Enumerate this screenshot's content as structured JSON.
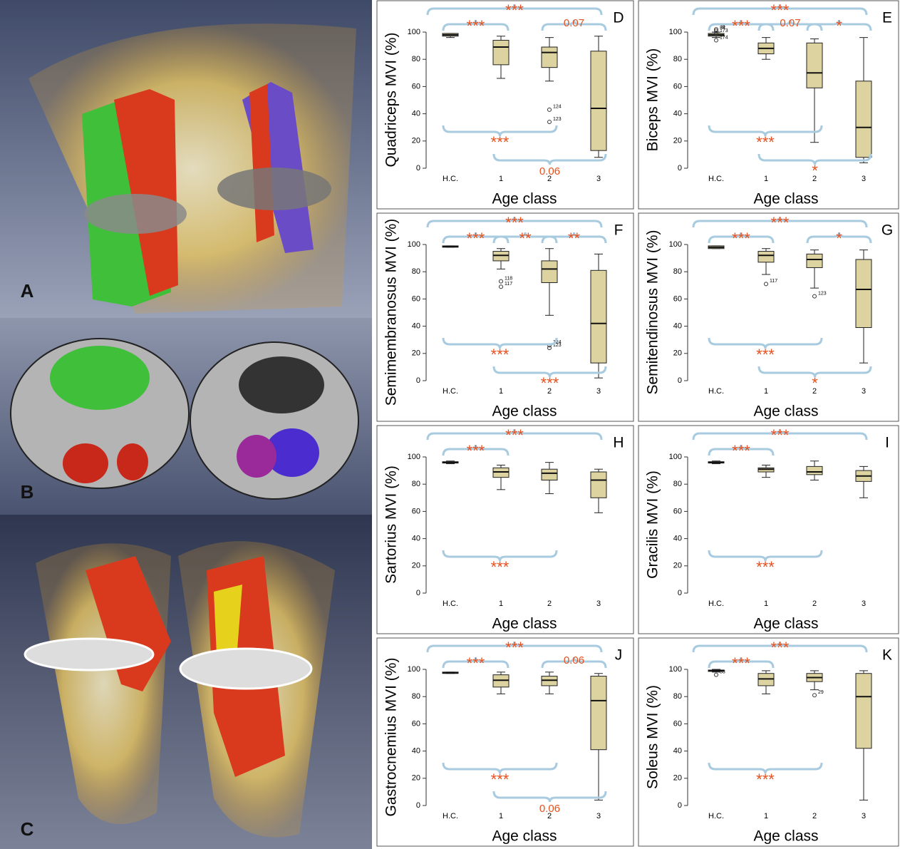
{
  "images": [
    {
      "label": "A"
    },
    {
      "label": "B"
    },
    {
      "label": "C"
    }
  ],
  "chart_data": [
    {
      "type": "box",
      "panel": "D",
      "ylabel": "Quadriceps MVI (%)",
      "xlabel": "Age class",
      "categories": [
        "H.C.",
        "1",
        "2",
        "3"
      ],
      "ylim": [
        0,
        100
      ],
      "yticks": [
        0,
        20,
        40,
        60,
        80,
        100
      ],
      "color": "#dcd3a0",
      "sig_color": "#e8501e",
      "boxes": [
        {
          "low": 96,
          "q1": 97,
          "median": 98,
          "q3": 99,
          "high": 99,
          "outliers": []
        },
        {
          "low": 66,
          "q1": 76,
          "median": 89,
          "q3": 94,
          "high": 97,
          "outliers": []
        },
        {
          "low": 64,
          "q1": 74,
          "median": 85,
          "q3": 89,
          "high": 96,
          "outliers": [
            {
              "value": 43,
              "label": "124"
            },
            {
              "value": 34,
              "label": "123"
            }
          ]
        },
        {
          "low": 8,
          "q1": 13,
          "median": 44,
          "q3": 86,
          "high": 97,
          "outliers": []
        }
      ],
      "comparisons": [
        {
          "between": [
            "H.C.",
            "3"
          ],
          "side": "top",
          "label": "***"
        },
        {
          "between": [
            "H.C.",
            "1"
          ],
          "side": "top",
          "label": "***"
        },
        {
          "between": [
            "2",
            "3"
          ],
          "side": "top",
          "label": "0.07"
        },
        {
          "between": [
            "H.C.",
            "2"
          ],
          "side": "bottom",
          "label": "***"
        },
        {
          "between": [
            "1",
            "3"
          ],
          "side": "bottom",
          "label": "0.06"
        }
      ]
    },
    {
      "type": "box",
      "panel": "E",
      "ylabel": "Biceps MVI (%)",
      "xlabel": "Age class",
      "categories": [
        "H.C.",
        "1",
        "2",
        "3"
      ],
      "ylim": [
        0,
        100
      ],
      "yticks": [
        0,
        20,
        40,
        60,
        80,
        100
      ],
      "color": "#dcd3a0",
      "sig_color": "#e8501e",
      "boxes": [
        {
          "low": 96,
          "q1": 97,
          "median": 98,
          "q3": 99,
          "high": 100,
          "outliers": [
            {
              "value": 101,
              "label": "34"
            },
            {
              "value": 102,
              "label": "36"
            },
            {
              "value": 99,
              "label": "173"
            },
            {
              "value": 94,
              "label": "174"
            }
          ]
        },
        {
          "low": 80,
          "q1": 84,
          "median": 88,
          "q3": 92,
          "high": 96,
          "outliers": []
        },
        {
          "low": 19,
          "q1": 59,
          "median": 70,
          "q3": 92,
          "high": 95,
          "outliers": []
        },
        {
          "low": 4,
          "q1": 8,
          "median": 30,
          "q3": 64,
          "high": 96,
          "outliers": []
        }
      ],
      "comparisons": [
        {
          "between": [
            "H.C.",
            "3"
          ],
          "side": "top",
          "label": "***"
        },
        {
          "between": [
            "H.C.",
            "1"
          ],
          "side": "top",
          "label": "***"
        },
        {
          "between": [
            "1",
            "2"
          ],
          "side": "top",
          "label": "0.07"
        },
        {
          "between": [
            "2",
            "3"
          ],
          "side": "top",
          "label": "*"
        },
        {
          "between": [
            "H.C.",
            "2"
          ],
          "side": "bottom",
          "label": "***"
        },
        {
          "between": [
            "1",
            "3"
          ],
          "side": "bottom",
          "label": "*"
        }
      ]
    },
    {
      "type": "box",
      "panel": "F",
      "ylabel": "Semimembranosus MVI (%)",
      "xlabel": "Age class",
      "categories": [
        "H.C.",
        "1",
        "2",
        "3"
      ],
      "ylim": [
        0,
        100
      ],
      "yticks": [
        0,
        20,
        40,
        60,
        80,
        100
      ],
      "color": "#dcd3a0",
      "sig_color": "#e8501e",
      "boxes": [
        {
          "low": 98,
          "q1": 98,
          "median": 98.5,
          "q3": 99,
          "high": 99,
          "outliers": []
        },
        {
          "low": 82,
          "q1": 88,
          "median": 92,
          "q3": 95,
          "high": 97,
          "outliers": [
            {
              "value": 73,
              "label": "118"
            },
            {
              "value": 69,
              "label": "117"
            }
          ]
        },
        {
          "low": 48,
          "q1": 72,
          "median": 82,
          "q3": 88,
          "high": 97,
          "outliers": [
            {
              "value": 26,
              "label": "124"
            },
            {
              "value": 24,
              "label": "123"
            }
          ]
        },
        {
          "low": 2,
          "q1": 13,
          "median": 42,
          "q3": 81,
          "high": 93,
          "outliers": []
        }
      ],
      "comparisons": [
        {
          "between": [
            "H.C.",
            "3"
          ],
          "side": "top",
          "label": "***"
        },
        {
          "between": [
            "H.C.",
            "1"
          ],
          "side": "top",
          "label": "***"
        },
        {
          "between": [
            "1",
            "2"
          ],
          "side": "top",
          "label": "**"
        },
        {
          "between": [
            "2",
            "3"
          ],
          "side": "top",
          "label": "**"
        },
        {
          "between": [
            "H.C.",
            "2"
          ],
          "side": "bottom",
          "label": "***"
        },
        {
          "between": [
            "1",
            "3"
          ],
          "side": "bottom",
          "label": "***"
        }
      ]
    },
    {
      "type": "box",
      "panel": "G",
      "ylabel": "Semitendinosus MVI (%)",
      "xlabel": "Age class",
      "categories": [
        "H.C.",
        "1",
        "2",
        "3"
      ],
      "ylim": [
        0,
        100
      ],
      "yticks": [
        0,
        20,
        40,
        60,
        80,
        100
      ],
      "color": "#dcd3a0",
      "sig_color": "#e8501e",
      "boxes": [
        {
          "low": 97,
          "q1": 97,
          "median": 98,
          "q3": 99,
          "high": 99,
          "outliers": []
        },
        {
          "low": 78,
          "q1": 87,
          "median": 92,
          "q3": 95,
          "high": 97,
          "outliers": [
            {
              "value": 71,
              "label": "117"
            }
          ]
        },
        {
          "low": 68,
          "q1": 83,
          "median": 89,
          "q3": 93,
          "high": 96,
          "outliers": [
            {
              "value": 62,
              "label": "123"
            }
          ]
        },
        {
          "low": 13,
          "q1": 39,
          "median": 67,
          "q3": 89,
          "high": 96,
          "outliers": []
        }
      ],
      "comparisons": [
        {
          "between": [
            "H.C.",
            "3"
          ],
          "side": "top",
          "label": "***"
        },
        {
          "between": [
            "H.C.",
            "1"
          ],
          "side": "top",
          "label": "***"
        },
        {
          "between": [
            "2",
            "3"
          ],
          "side": "top",
          "label": "*"
        },
        {
          "between": [
            "H.C.",
            "2"
          ],
          "side": "bottom",
          "label": "***"
        },
        {
          "between": [
            "1",
            "3"
          ],
          "side": "bottom",
          "label": "*"
        }
      ]
    },
    {
      "type": "box",
      "panel": "H",
      "ylabel": "Sartorius MVI (%)",
      "xlabel": "Age class",
      "categories": [
        "H.C.",
        "1",
        "2",
        "3"
      ],
      "ylim": [
        0,
        100
      ],
      "yticks": [
        0,
        20,
        40,
        60,
        80,
        100
      ],
      "color": "#dcd3a0",
      "sig_color": "#e8501e",
      "boxes": [
        {
          "low": 95,
          "q1": 95.5,
          "median": 96,
          "q3": 96.5,
          "high": 97,
          "outliers": []
        },
        {
          "low": 76,
          "q1": 85,
          "median": 89,
          "q3": 92,
          "high": 94,
          "outliers": []
        },
        {
          "low": 73,
          "q1": 83,
          "median": 88,
          "q3": 91,
          "high": 96,
          "outliers": []
        },
        {
          "low": 59,
          "q1": 70,
          "median": 83,
          "q3": 89,
          "high": 91,
          "outliers": []
        }
      ],
      "comparisons": [
        {
          "between": [
            "H.C.",
            "3"
          ],
          "side": "top",
          "label": "***"
        },
        {
          "between": [
            "H.C.",
            "1"
          ],
          "side": "top",
          "label": "***"
        },
        {
          "between": [
            "H.C.",
            "2"
          ],
          "side": "bottom",
          "label": "***"
        }
      ]
    },
    {
      "type": "box",
      "panel": "I",
      "ylabel": "Gracilis MVI (%)",
      "xlabel": "Age class",
      "categories": [
        "H.C.",
        "1",
        "2",
        "3"
      ],
      "ylim": [
        0,
        100
      ],
      "yticks": [
        0,
        20,
        40,
        60,
        80,
        100
      ],
      "color": "#dcd3a0",
      "sig_color": "#e8501e",
      "boxes": [
        {
          "low": 95,
          "q1": 95.5,
          "median": 96,
          "q3": 96.5,
          "high": 97,
          "outliers": []
        },
        {
          "low": 85,
          "q1": 89,
          "median": 91,
          "q3": 92,
          "high": 94,
          "outliers": []
        },
        {
          "low": 83,
          "q1": 87,
          "median": 89,
          "q3": 93,
          "high": 97,
          "outliers": []
        },
        {
          "low": 70,
          "q1": 82,
          "median": 86,
          "q3": 90,
          "high": 93,
          "outliers": []
        }
      ],
      "comparisons": [
        {
          "between": [
            "H.C.",
            "3"
          ],
          "side": "top",
          "label": "***"
        },
        {
          "between": [
            "H.C.",
            "1"
          ],
          "side": "top",
          "label": "***"
        },
        {
          "between": [
            "H.C.",
            "2"
          ],
          "side": "bottom",
          "label": "***"
        }
      ]
    },
    {
      "type": "box",
      "panel": "J",
      "ylabel": "Gastrocnemius MVI (%)",
      "xlabel": "Age class",
      "categories": [
        "H.C.",
        "1",
        "2",
        "3"
      ],
      "ylim": [
        0,
        100
      ],
      "yticks": [
        0,
        20,
        40,
        60,
        80,
        100
      ],
      "color": "#dcd3a0",
      "sig_color": "#e8501e",
      "boxes": [
        {
          "low": 97,
          "q1": 97,
          "median": 97.5,
          "q3": 98,
          "high": 98,
          "outliers": []
        },
        {
          "low": 82,
          "q1": 87,
          "median": 92,
          "q3": 96,
          "high": 98,
          "outliers": []
        },
        {
          "low": 82,
          "q1": 88,
          "median": 92,
          "q3": 95,
          "high": 98,
          "outliers": []
        },
        {
          "low": 4,
          "q1": 41,
          "median": 77,
          "q3": 95,
          "high": 97,
          "outliers": []
        }
      ],
      "comparisons": [
        {
          "between": [
            "H.C.",
            "3"
          ],
          "side": "top",
          "label": "***"
        },
        {
          "between": [
            "H.C.",
            "1"
          ],
          "side": "top",
          "label": "***"
        },
        {
          "between": [
            "2",
            "3"
          ],
          "side": "top",
          "label": "0.06"
        },
        {
          "between": [
            "H.C.",
            "2"
          ],
          "side": "bottom",
          "label": "***"
        },
        {
          "between": [
            "1",
            "3"
          ],
          "side": "bottom",
          "label": "0.06"
        }
      ]
    },
    {
      "type": "box",
      "panel": "K",
      "ylabel": "Soleus MVI (%)",
      "xlabel": "Age class",
      "categories": [
        "H.C.",
        "1",
        "2",
        "3"
      ],
      "ylim": [
        0,
        100
      ],
      "yticks": [
        0,
        20,
        40,
        60,
        80,
        100
      ],
      "color": "#dcd3a0",
      "sig_color": "#e8501e",
      "boxes": [
        {
          "low": 98,
          "q1": 98.5,
          "median": 99,
          "q3": 99.5,
          "high": 100,
          "outliers": [
            {
              "value": 96,
              "label": "33"
            }
          ]
        },
        {
          "low": 82,
          "q1": 88,
          "median": 93,
          "q3": 97,
          "high": 99,
          "outliers": []
        },
        {
          "low": 85,
          "q1": 91,
          "median": 94,
          "q3": 97,
          "high": 99,
          "outliers": [
            {
              "value": 81,
              "label": "29"
            }
          ]
        },
        {
          "low": 4,
          "q1": 42,
          "median": 80,
          "q3": 97,
          "high": 99,
          "outliers": []
        }
      ],
      "comparisons": [
        {
          "between": [
            "H.C.",
            "3"
          ],
          "side": "top",
          "label": "***"
        },
        {
          "between": [
            "H.C.",
            "1"
          ],
          "side": "top",
          "label": "***"
        },
        {
          "between": [
            "H.C.",
            "2"
          ],
          "side": "bottom",
          "label": "***"
        }
      ]
    }
  ]
}
